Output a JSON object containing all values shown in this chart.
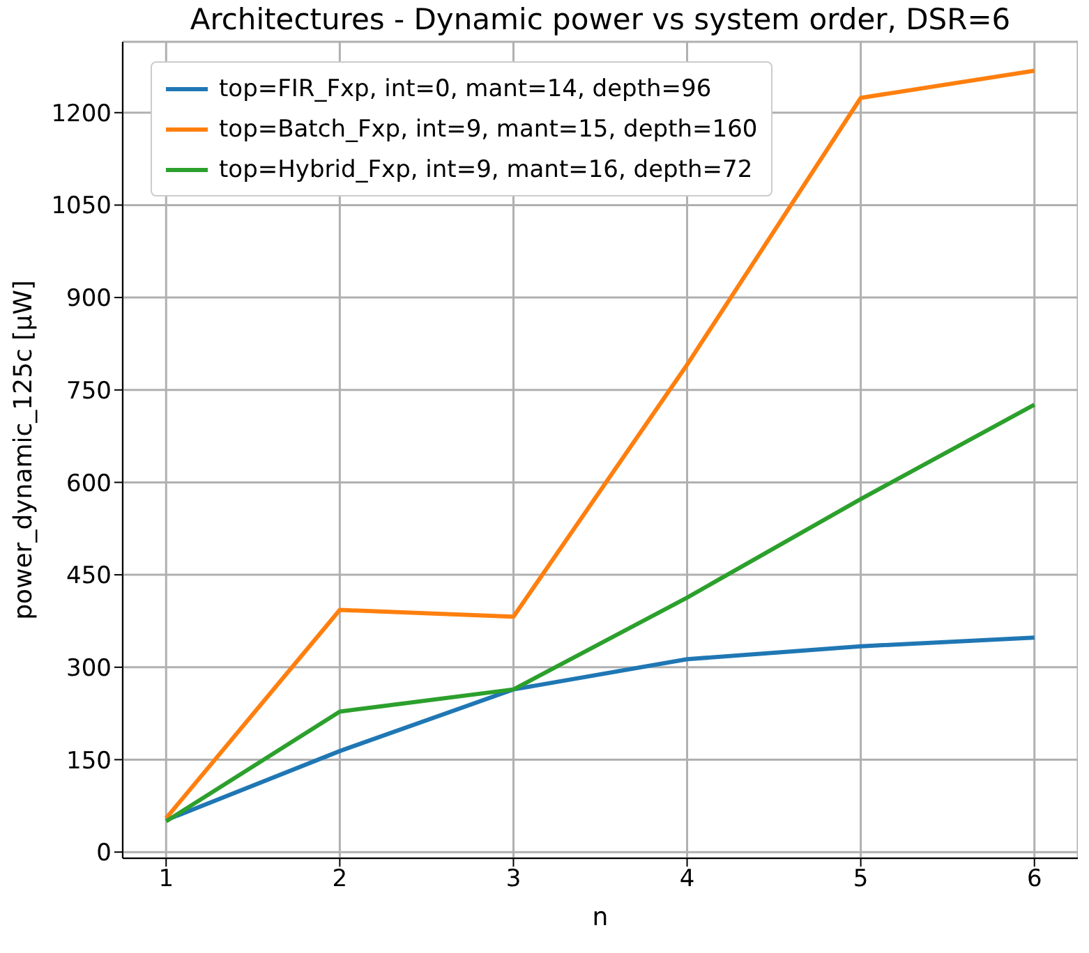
{
  "chart_data": {
    "type": "line",
    "title": "Architectures - Dynamic power vs system order, DSR=6",
    "xlabel": "n",
    "ylabel": "power_dynamic_125c [μW]",
    "x": [
      1,
      2,
      3,
      4,
      5,
      6
    ],
    "series": [
      {
        "name": "top=FIR_Fxp, int=0, mant=14, depth=96",
        "color": "#1f77b4",
        "values": [
          52,
          164,
          264,
          313,
          334,
          348
        ]
      },
      {
        "name": "top=Batch_Fxp, int=9, mant=15, depth=160",
        "color": "#ff7f0e",
        "values": [
          55,
          393,
          382,
          791,
          1224,
          1268
        ]
      },
      {
        "name": "top=Hybrid_Fxp, int=9, mant=16, depth=72",
        "color": "#2ca02c",
        "values": [
          50,
          228,
          264,
          413,
          573,
          726
        ]
      }
    ],
    "xlim": [
      0.75,
      6.25
    ],
    "xticks": [
      1,
      2,
      3,
      4,
      5,
      6
    ],
    "ylim": [
      -10,
      1315
    ],
    "yticks": [
      0,
      150,
      300,
      450,
      600,
      750,
      900,
      1050,
      1200
    ],
    "grid": true,
    "legend": "top left",
    "marker": "none",
    "line_style": "solid"
  }
}
